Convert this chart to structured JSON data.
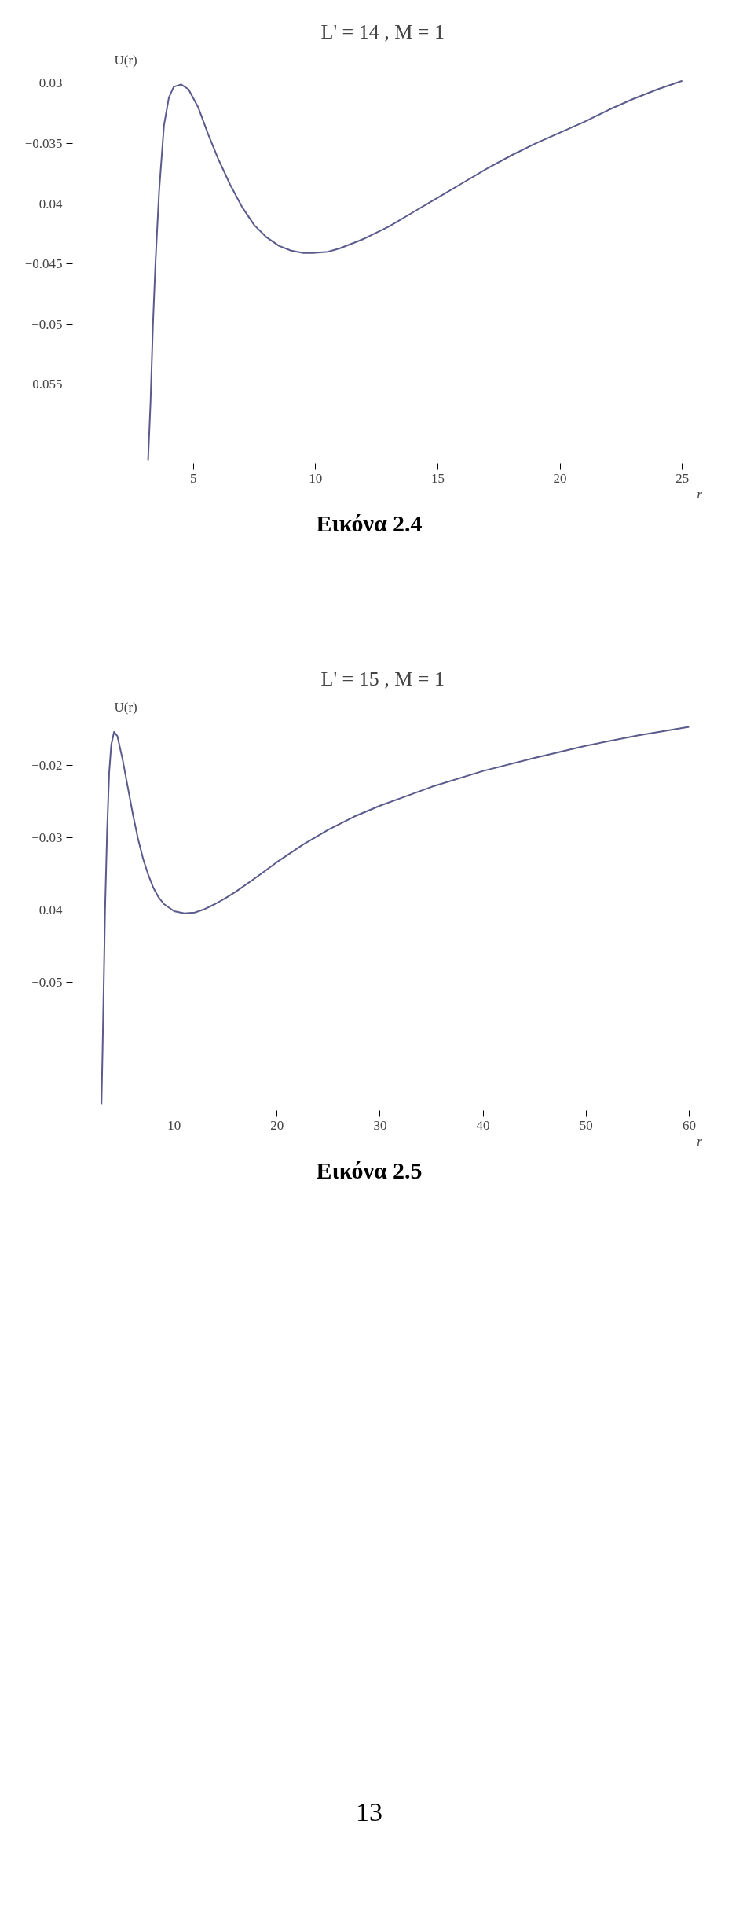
{
  "chart_data": [
    {
      "type": "line",
      "title": "L' = 14 ,  M = 1",
      "xlabel": "r",
      "ylabel": "U(r)",
      "annotations": [
        "Εικόνα 2.4"
      ],
      "xlim": [
        0,
        25.7
      ],
      "ylim": [
        -0.0617,
        -0.029
      ],
      "xticks": [
        5,
        10,
        15,
        20,
        25
      ],
      "yticks": [
        -0.03,
        -0.035,
        -0.04,
        -0.045,
        -0.05,
        -0.055
      ],
      "grid": false,
      "series": [
        {
          "color": "#5a5a8c",
          "x": [
            3.15,
            3.25,
            3.35,
            3.45,
            3.6,
            3.8,
            4.0,
            4.2,
            4.5,
            4.8,
            5.2,
            5.6,
            6.0,
            6.5,
            7.0,
            7.5,
            8.0,
            8.5,
            9.0,
            9.5,
            9.9,
            10.5,
            11.0,
            12.0,
            13.0,
            14.0,
            15.0,
            16.0,
            17.0,
            18.0,
            19.0,
            20.0,
            21.0,
            22.0,
            23.0,
            24.0,
            25.0
          ],
          "values": [
            -0.0613,
            -0.0565,
            -0.05,
            -0.045,
            -0.039,
            -0.0335,
            -0.0312,
            -0.0303,
            -0.0301,
            -0.0305,
            -0.032,
            -0.0342,
            -0.0362,
            -0.0384,
            -0.0403,
            -0.0418,
            -0.0428,
            -0.0435,
            -0.0439,
            -0.0441,
            -0.0441,
            -0.044,
            -0.0437,
            -0.0429,
            -0.0419,
            -0.0407,
            -0.0395,
            -0.0383,
            -0.0371,
            -0.036,
            -0.035,
            -0.0341,
            -0.0332,
            -0.0322,
            -0.0313,
            -0.0305,
            -0.0298
          ]
        }
      ]
    },
    {
      "type": "line",
      "title": "L' = 15 ,  M = 1",
      "xlabel": "r",
      "ylabel": "U(r)",
      "annotations": [
        "Εικόνα 2.5",
        "13"
      ],
      "xlim": [
        0,
        61
      ],
      "ylim": [
        -0.068,
        -0.0135
      ],
      "xticks": [
        10,
        20,
        30,
        40,
        50,
        60
      ],
      "yticks": [
        -0.02,
        -0.03,
        -0.04,
        -0.05
      ],
      "grid": false,
      "series": [
        {
          "color": "#5a5a8c",
          "x": [
            2.95,
            3.05,
            3.15,
            3.3,
            3.5,
            3.7,
            3.9,
            4.17,
            4.5,
            5.0,
            5.5,
            6.0,
            6.5,
            7.0,
            7.5,
            8.0,
            8.5,
            9.0,
            10.0,
            11.0,
            12.0,
            13.0,
            14.0,
            15.0,
            16.0,
            18.0,
            20.0,
            22.5,
            25.0,
            27.5,
            30.0,
            35.0,
            40.0,
            45.0,
            50.0,
            55.0,
            60.0
          ],
          "values": [
            -0.0669,
            -0.06,
            -0.052,
            -0.04,
            -0.029,
            -0.021,
            -0.0172,
            -0.0154,
            -0.016,
            -0.0192,
            -0.023,
            -0.0268,
            -0.0302,
            -0.033,
            -0.0352,
            -0.037,
            -0.0383,
            -0.0392,
            -0.0402,
            -0.0405,
            -0.0404,
            -0.0399,
            -0.0392,
            -0.0384,
            -0.0375,
            -0.0355,
            -0.0334,
            -0.031,
            -0.0289,
            -0.0271,
            -0.0256,
            -0.023,
            -0.0208,
            -0.019,
            -0.0173,
            -0.0159,
            -0.0147
          ]
        }
      ]
    }
  ]
}
